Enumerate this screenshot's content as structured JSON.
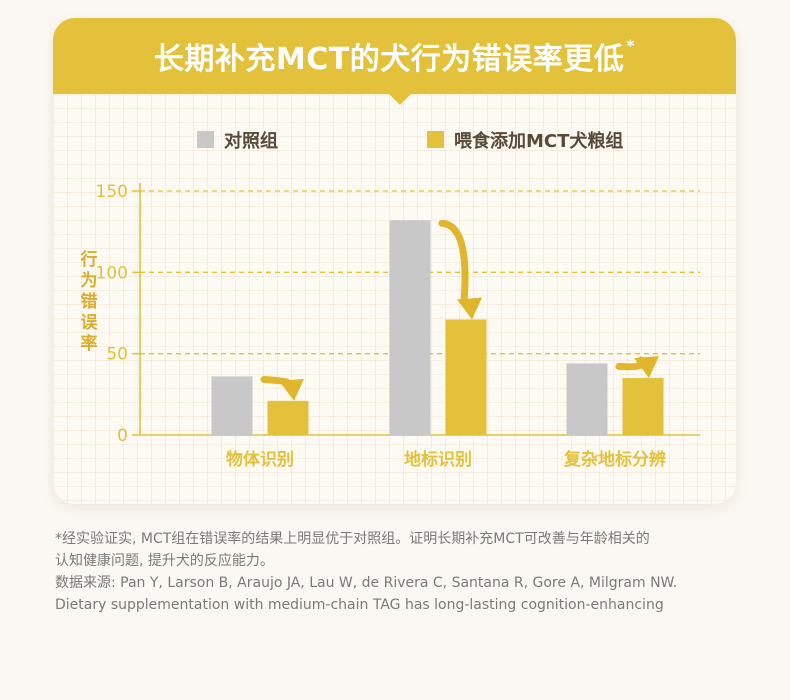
{
  "header": {
    "title": "长期补充MCT的犬行为错误率更低",
    "star": "*"
  },
  "legend": [
    {
      "label": "对照组",
      "color": "#c8c8c8"
    },
    {
      "label": "喂食添加MCT犬粮组",
      "color": "#e3c13b"
    }
  ],
  "colors": {
    "accent": "#e3c13b",
    "axis": "#e3c13b",
    "control": "#c8c8c8",
    "mct": "#e3c13b",
    "arrow": "#e0b62c"
  },
  "chart_data": {
    "type": "bar",
    "categories": [
      "物体识别",
      "地标识别",
      "复杂地标分辨"
    ],
    "series": [
      {
        "name": "对照组",
        "values": [
          36,
          132,
          44
        ]
      },
      {
        "name": "喂食添加MCT犬粮组",
        "values": [
          21,
          71,
          35
        ]
      }
    ],
    "ylabel": "行为错误率",
    "yticks": [
      0,
      50,
      100,
      150
    ],
    "ylim": [
      0,
      150
    ],
    "grid": "dashed horizontal",
    "legend": "top"
  },
  "footnote": {
    "line1": "*经实验证实, MCT组在错误率的结果上明显优于对照组。证明长期补充MCT可改善与年龄相关的",
    "line2": "认知健康问题, 提升犬的反应能力。",
    "line3": "数据来源: Pan Y, Larson B, Araujo JA, Lau W, de Rivera C, Santana R, Gore A, Milgram NW.",
    "line4": "Dietary supplementation with medium-chain TAG has long-lasting cognition-enhancing"
  }
}
